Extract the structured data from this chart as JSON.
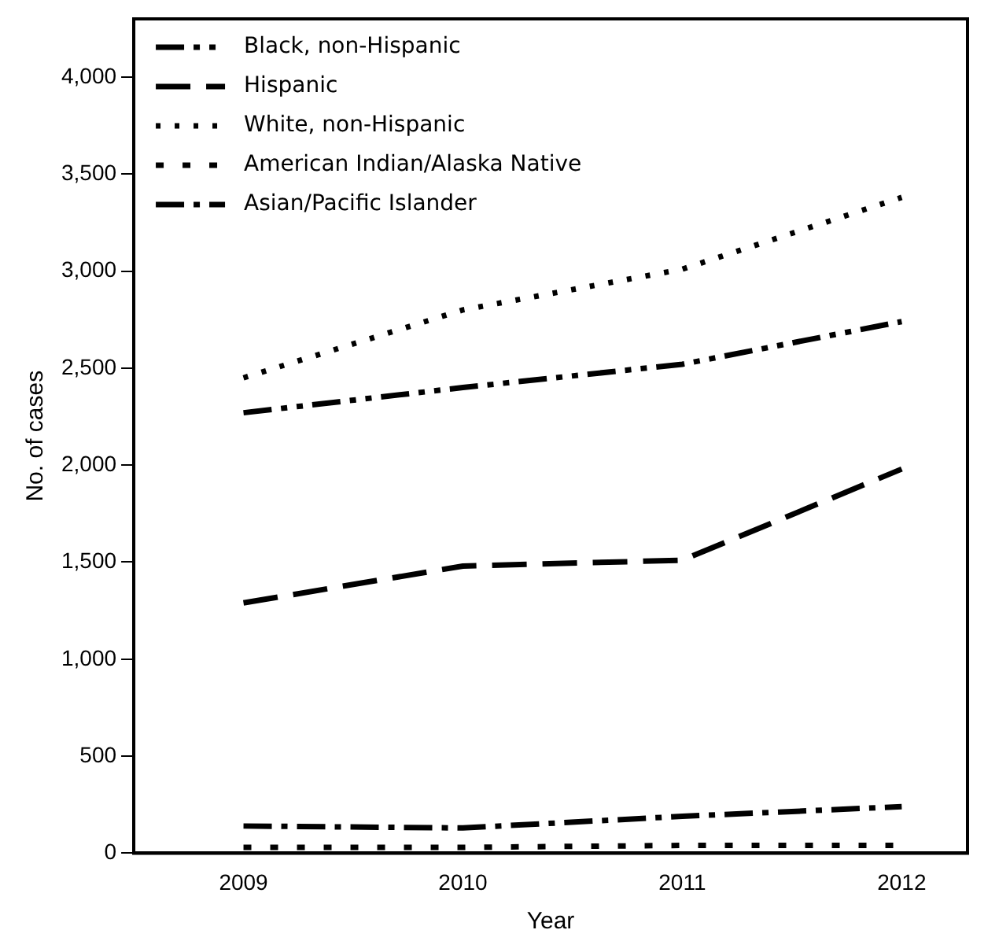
{
  "chart_data": {
    "type": "line",
    "xlabel": "Year",
    "ylabel": "No. of cases",
    "x": [
      2009,
      2010,
      2011,
      2012
    ],
    "xlim": [
      2008.5,
      2012.3
    ],
    "xticks": [
      2009,
      2010,
      2011,
      2012
    ],
    "ylim": [
      0,
      4300
    ],
    "yticks": [
      {
        "value": 0,
        "label": "0"
      },
      {
        "value": 500,
        "label": "500"
      },
      {
        "value": 1000,
        "label": "1,000"
      },
      {
        "value": 1500,
        "label": "1,500"
      },
      {
        "value": 2000,
        "label": "2,000"
      },
      {
        "value": 2500,
        "label": "2,500"
      },
      {
        "value": 3000,
        "label": "3,000"
      },
      {
        "value": 3500,
        "label": "3,500"
      },
      {
        "value": 4000,
        "label": "4,000"
      }
    ],
    "grid": false,
    "legend": "top left",
    "marker": "none",
    "series": [
      {
        "name": "Black, non-Hispanic",
        "color": "#000000",
        "line_style": "dashdotdot",
        "values": [
          2270,
          2400,
          2520,
          2740
        ]
      },
      {
        "name": "Hispanic",
        "color": "#000000",
        "line_style": "dashed",
        "values": [
          1290,
          1480,
          1510,
          1980
        ]
      },
      {
        "name": "White, non-Hispanic",
        "color": "#000000",
        "line_style": "dotted",
        "values": [
          2450,
          2800,
          3010,
          3380
        ]
      },
      {
        "name": "American Indian/Alaska Native",
        "color": "#000000",
        "line_style": "shortdash",
        "values": [
          30,
          30,
          40,
          40
        ]
      },
      {
        "name": "Asian/Pacific Islander",
        "color": "#000000",
        "line_style": "dashdot",
        "values": [
          140,
          130,
          190,
          240
        ]
      }
    ]
  }
}
